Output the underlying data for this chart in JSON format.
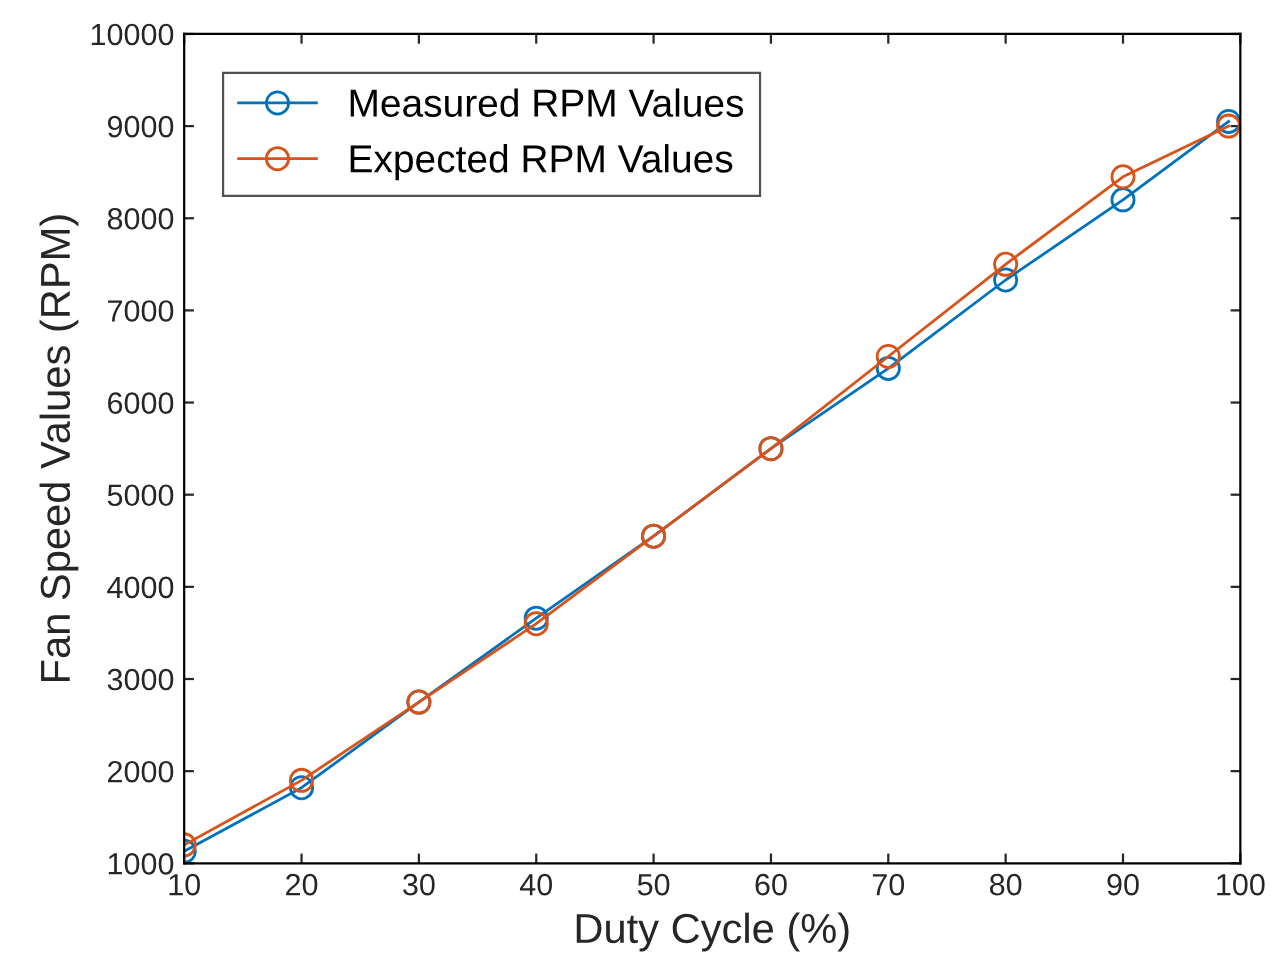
{
  "chart_data": {
    "type": "line",
    "xlabel": "Duty Cycle (%)",
    "ylabel": "Fan Speed Values (RPM)",
    "x": [
      10,
      20,
      30,
      40,
      50,
      60,
      70,
      80,
      90,
      99
    ],
    "series": [
      {
        "name": "Measured RPM Values",
        "color": "#0072bd",
        "values": [
          1130,
          1820,
          2750,
          3660,
          4550,
          5500,
          6370,
          7330,
          8200,
          9050
        ]
      },
      {
        "name": "Expected RPM Values",
        "color": "#d95319",
        "values": [
          1200,
          1900,
          2750,
          3600,
          4550,
          5500,
          6500,
          7500,
          8450,
          9000
        ]
      }
    ],
    "xlim": [
      10,
      100
    ],
    "xticks": [
      10,
      20,
      30,
      40,
      50,
      60,
      70,
      80,
      90,
      100
    ],
    "ylim": [
      1000,
      10000
    ],
    "yticks": [
      1000,
      2000,
      3000,
      4000,
      5000,
      6000,
      7000,
      8000,
      9000,
      10000
    ],
    "grid": false,
    "legend": "top left",
    "marker": "circle",
    "line_style": "solid"
  }
}
